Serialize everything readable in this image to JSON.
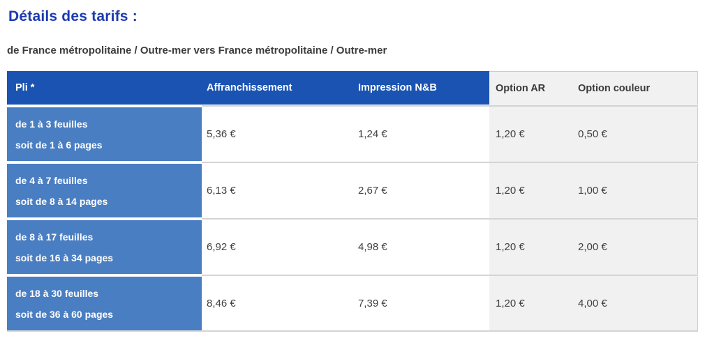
{
  "page": {
    "title": "Détails des tarifs :",
    "subtitle": "de France métropolitaine / Outre-mer vers France métropolitaine / Outre-mer"
  },
  "colors": {
    "title_blue": "#1c3ab2",
    "header_blue": "#1a53b1",
    "row_blue": "#4a7ec2",
    "option_column_gray": "#f1f1f1",
    "separator_gray": "#d4d4d4",
    "body_text": "#3f3f3f"
  },
  "table": {
    "columns": [
      {
        "label": "Pli *"
      },
      {
        "label": "Affranchissement"
      },
      {
        "label": "Impression N&B"
      },
      {
        "label": "Option AR"
      },
      {
        "label": "Option couleur"
      }
    ],
    "rows": [
      {
        "pli_line1": "de 1 à 3 feuilles",
        "pli_line2": "soit de 1 à 6 pages",
        "affranchissement": "5,36 €",
        "impression_nb": "1,24 €",
        "option_ar": "1,20 €",
        "option_couleur": "0,50 €"
      },
      {
        "pli_line1": "de 4 à 7 feuilles",
        "pli_line2": "soit de 8 à 14 pages",
        "affranchissement": "6,13 €",
        "impression_nb": "2,67 €",
        "option_ar": "1,20 €",
        "option_couleur": "1,00 €"
      },
      {
        "pli_line1": "de 8 à 17 feuilles",
        "pli_line2": "soit de 16 à 34 pages",
        "affranchissement": "6,92 €",
        "impression_nb": "4,98 €",
        "option_ar": "1,20 €",
        "option_couleur": "2,00 €"
      },
      {
        "pli_line1": "de 18 à 30 feuilles",
        "pli_line2": "soit de 36 à 60 pages",
        "affranchissement": "8,46 €",
        "impression_nb": "7,39 €",
        "option_ar": "1,20 €",
        "option_couleur": "4,00 €"
      }
    ]
  }
}
